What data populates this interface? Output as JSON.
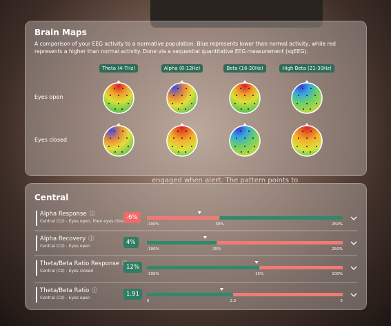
{
  "brain_maps": {
    "title": "Brain Maps",
    "description": "A comparison of your EEG activity to a normative population. Blue represents lower than normal activity, while red represents a higher than normal activity. Done via a sequential quantitative EEG measurement (sqEEG).",
    "columns": [
      "Theta (4-7Hz)",
      "Alpha (8-12Hz)",
      "Beta (16-20Hz)",
      "High Beta (21-30Hz)"
    ],
    "rows": [
      "Eyes open",
      "Eyes closed"
    ]
  },
  "background_text": "engaged when alert. The pattern points to",
  "central": {
    "title": "Central",
    "metrics": [
      {
        "name": "Alpha Response",
        "condition": "Central (Cz) - Eyes open, then eyes closed",
        "value": -6,
        "value_label": "-6%",
        "badge_color": "#ee6b6b",
        "colors": [
          "#f27a76",
          "#2f8a6b"
        ],
        "ticks": [
          {
            "value": -100,
            "label": "-100%"
          },
          {
            "value": 30,
            "label": "30%"
          },
          {
            "value": 250,
            "label": "250%"
          }
        ]
      },
      {
        "name": "Alpha Recovery",
        "condition": "Central (Cz) - Eyes open",
        "value": 4,
        "value_label": "4%",
        "badge_color": "#2f7d63",
        "colors": [
          "#2f8a6b",
          "#f27a76"
        ],
        "ticks": [
          {
            "value": -100,
            "label": "-100%"
          },
          {
            "value": 25,
            "label": "25%"
          },
          {
            "value": 250,
            "label": "250%"
          }
        ]
      },
      {
        "name": "Theta/Beta Ratio Response",
        "condition": "Central (Cz) - Eyes closed",
        "value": 12,
        "value_label": "12%",
        "badge_color": "#2f7d63",
        "colors": [
          "#2f8a6b",
          "#f27a76"
        ],
        "ticks": [
          {
            "value": -100,
            "label": "-100%"
          },
          {
            "value": 15,
            "label": "15%"
          },
          {
            "value": 100,
            "label": "100%"
          }
        ]
      },
      {
        "name": "Theta/Beta Ratio",
        "condition": "Central (Cz) - Eyes open",
        "value": 1.91,
        "badge_color": "#2f7d63",
        "colors": [
          "#2f8a6b",
          "#f27a76"
        ],
        "ticks": [
          0,
          2.2,
          5
        ]
      }
    ]
  }
}
